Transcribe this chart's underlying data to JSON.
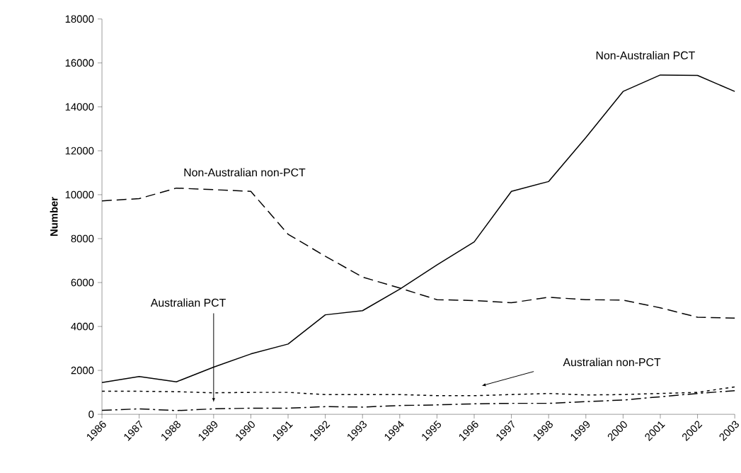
{
  "chart_data": {
    "type": "line",
    "ylabel": "Number",
    "categories": [
      "1986",
      "1987",
      "1988",
      "1989",
      "1990",
      "1991",
      "1992",
      "1993",
      "1994",
      "1995",
      "1996",
      "1997",
      "1998",
      "1999",
      "2000",
      "2001",
      "2002",
      "2003"
    ],
    "series": [
      {
        "name": "Non-Australian PCT",
        "color": "#000000",
        "line_style": "solid",
        "values": [
          1450,
          1720,
          1480,
          2150,
          2750,
          3200,
          4530,
          4720,
          5700,
          6800,
          7850,
          10150,
          10600,
          12600,
          14700,
          15450,
          15430,
          14700
        ]
      },
      {
        "name": "Non-Australian non-PCT",
        "color": "#000000",
        "line_style": "dashed",
        "values": [
          9720,
          9820,
          10300,
          10230,
          10150,
          8200,
          7200,
          6250,
          5750,
          5220,
          5180,
          5080,
          5330,
          5220,
          5200,
          4850,
          4420,
          4380
        ]
      },
      {
        "name": "Australian non-PCT",
        "color": "#000000",
        "line_style": "dotted",
        "values": [
          1050,
          1050,
          1030,
          980,
          1000,
          1000,
          900,
          900,
          900,
          850,
          850,
          900,
          950,
          880,
          900,
          950,
          1000,
          1250
        ]
      },
      {
        "name": "Australian PCT",
        "color": "#000000",
        "line_style": "dashdot",
        "values": [
          180,
          250,
          170,
          250,
          280,
          280,
          350,
          330,
          400,
          430,
          480,
          500,
          500,
          580,
          650,
          800,
          950,
          1080
        ]
      }
    ],
    "ylim": [
      0,
      18000
    ],
    "yticks": [
      0,
      2000,
      4000,
      6000,
      8000,
      10000,
      12000,
      14000,
      16000,
      18000
    ],
    "legend": false,
    "grid": false,
    "marker": "none"
  }
}
